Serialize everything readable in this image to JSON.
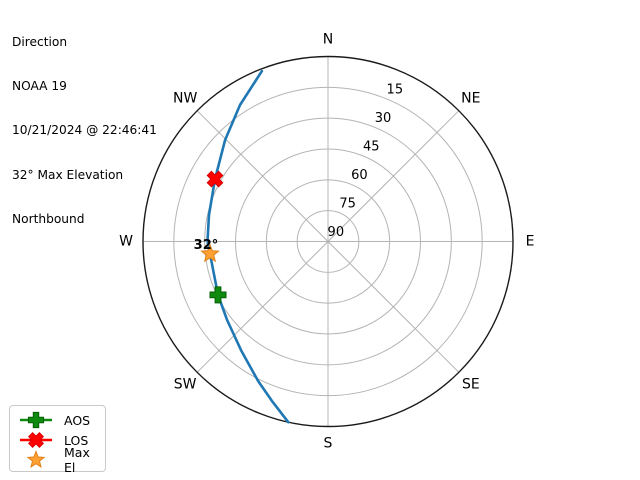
{
  "info": {
    "lines": [
      "Direction",
      "NOAA 19",
      "10/21/2024 @ 22:46:41",
      "32° Max Elevation",
      "Northbound"
    ]
  },
  "legend": {
    "items": [
      {
        "label": "AOS",
        "marker": "plus-icon",
        "color": "#0e8a0e",
        "edge": "#065f06",
        "has_line": true
      },
      {
        "label": "LOS",
        "marker": "x-icon",
        "color": "#ff0000",
        "edge": "#d40000",
        "has_line": true
      },
      {
        "label": "Max El",
        "marker": "star-icon",
        "color": "#ffa033",
        "edge": "#e07f17",
        "has_line": false
      }
    ]
  },
  "chart_data": {
    "type": "line",
    "projection": "polar",
    "title": "Direction",
    "satellite": "NOAA 19",
    "pass_time": "10/21/2024 @ 22:46:41",
    "max_elevation_deg": 32,
    "direction": "Northbound",
    "compass_labels": [
      "N",
      "NE",
      "E",
      "SE",
      "S",
      "SW",
      "W",
      "NW"
    ],
    "elevation_ticks": [
      15,
      30,
      45,
      60,
      75,
      90
    ],
    "radial_axis": {
      "center_value": 90,
      "edge_value": 0,
      "tick_label_azimuth_deg": 22.5,
      "grid": true
    },
    "colors": {
      "track": "#1f77b4",
      "grid": "#b4b4b4",
      "spine": "#1a1a1a",
      "text": "#000000"
    },
    "track": {
      "name": "NOAA 19 pass track",
      "color": "#1f77b4",
      "points_az_el": [
        [
          338.8,
          1.1
        ],
        [
          327.2,
          11.0
        ],
        [
          314.6,
          19.7
        ],
        [
          298.9,
          27.2
        ],
        [
          282.6,
          30.7
        ],
        [
          270.2,
          31.4
        ],
        [
          264.0,
          32.3
        ],
        [
          244.1,
          30.5
        ],
        [
          232.1,
          27.8
        ],
        [
          218.7,
          22.3
        ],
        [
          206.6,
          14.1
        ],
        [
          199.4,
          7.8
        ],
        [
          192.4,
          0.0
        ]
      ]
    },
    "markers": [
      {
        "name": "AOS",
        "shape": "plus",
        "az": 244.1,
        "el": 30.5,
        "color": "#0e8a0e",
        "edge": "#065f06"
      },
      {
        "name": "LOS",
        "shape": "x",
        "az": 298.9,
        "el": 27.2,
        "color": "#ff0000",
        "edge": "#d40000"
      },
      {
        "name": "Max El",
        "shape": "star",
        "az": 264.0,
        "el": 32.3,
        "color": "#ffa033",
        "edge": "#e07f17"
      }
    ],
    "annotation": {
      "text": "32°",
      "az": 268.1,
      "el": 30.6
    }
  }
}
